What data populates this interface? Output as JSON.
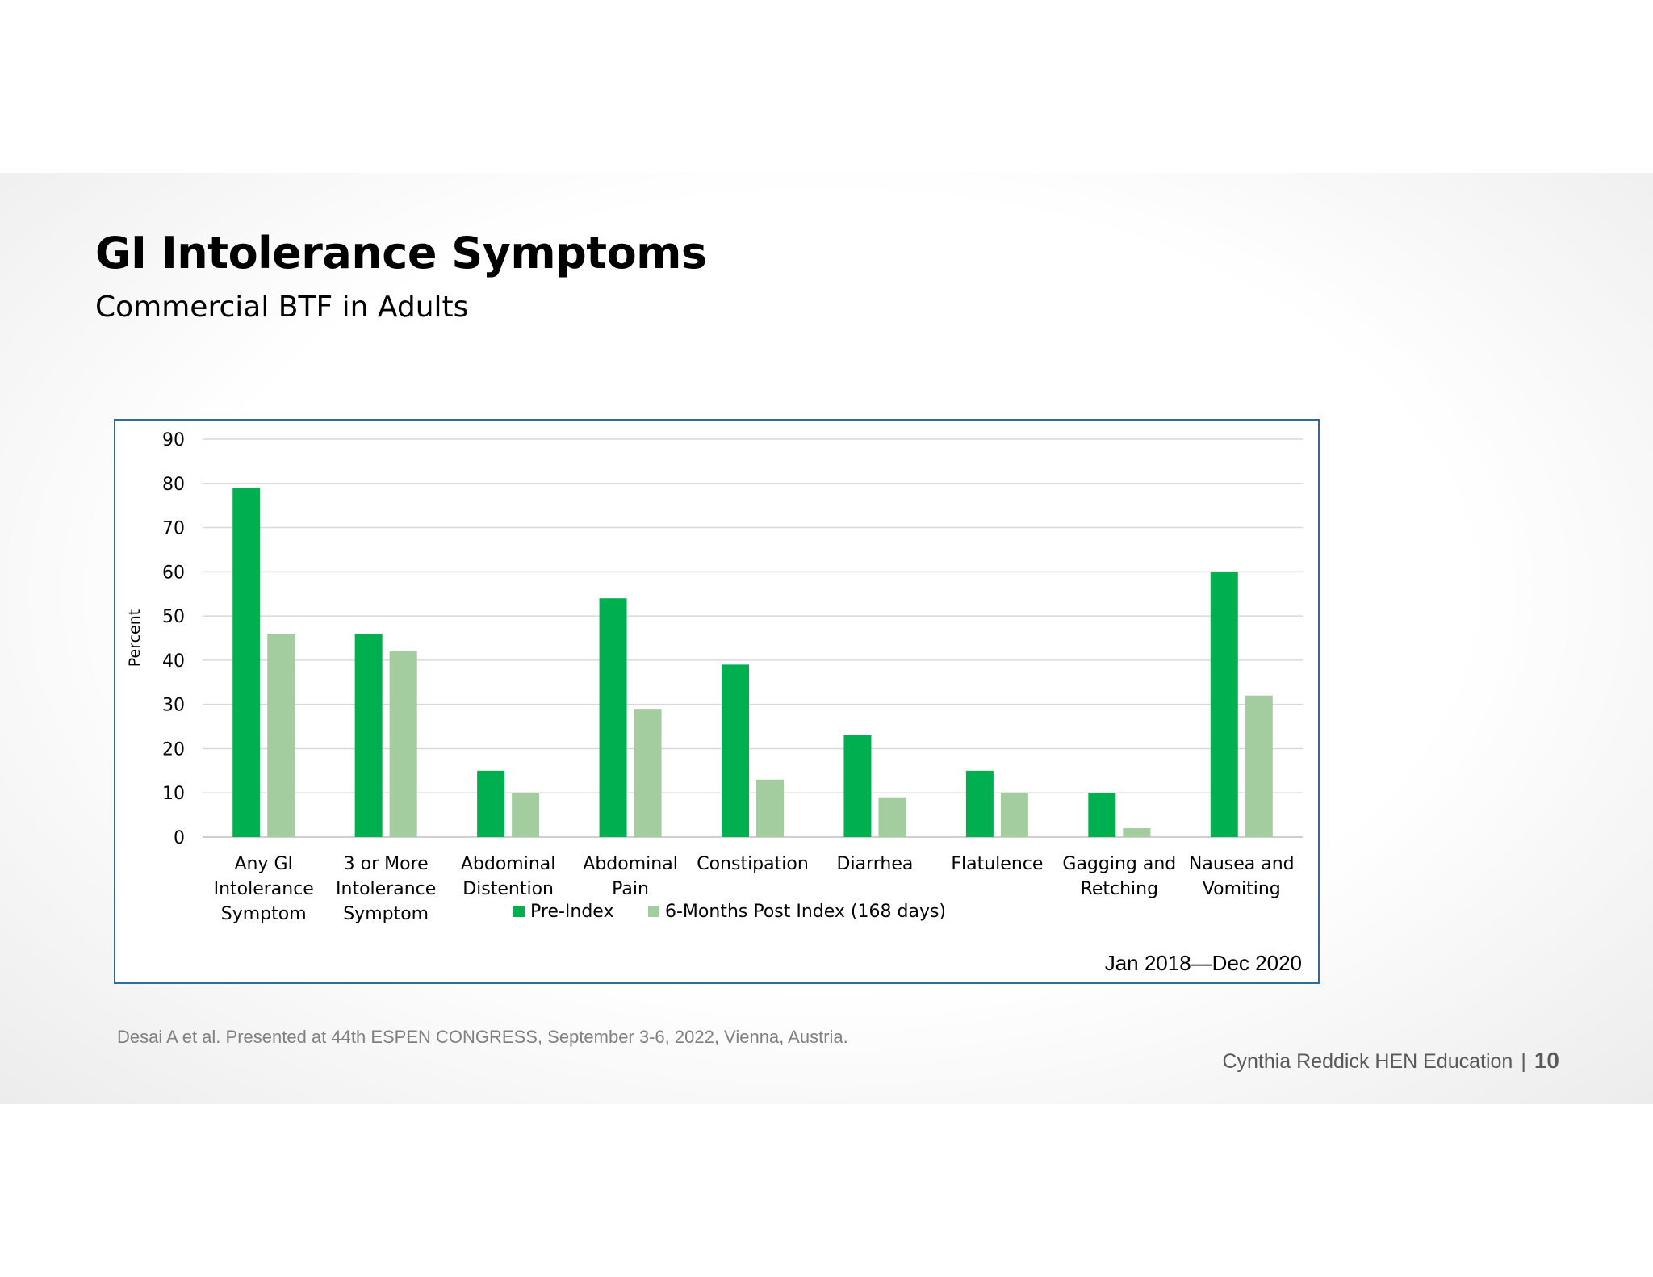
{
  "slide": {
    "title": "GI Intolerance Symptoms",
    "subtitle": "Commercial BTF in Adults",
    "date_range": "Jan 2018—Dec 2020",
    "citation": "Desai A et al.  Presented at 44th ESPEN CONGRESS, September 3-6, 2022, Vienna, Austria.",
    "footer_org": "Cynthia Reddick HEN Education",
    "footer_separator": "|",
    "page_number": "10"
  },
  "chart_data": {
    "type": "bar",
    "title": "",
    "xlabel": "",
    "ylabel": "Percent",
    "ylim": [
      0,
      90
    ],
    "yticks": [
      0,
      10,
      20,
      30,
      40,
      50,
      60,
      70,
      80,
      90
    ],
    "grid": true,
    "legend_position": "bottom",
    "categories": [
      [
        "Any GI",
        "Intolerance",
        "Symptom"
      ],
      [
        "3 or More",
        "Intolerance",
        "Symptom"
      ],
      [
        "Abdominal",
        "Distention"
      ],
      [
        "Abdominal",
        "Pain"
      ],
      [
        "Constipation"
      ],
      [
        "Diarrhea"
      ],
      [
        "Flatulence"
      ],
      [
        "Gagging and",
        "Retching"
      ],
      [
        "Nausea and",
        "Vomiting"
      ]
    ],
    "series": [
      {
        "name": "Pre-Index",
        "color": "#00b050",
        "values": [
          79,
          46,
          15,
          54,
          39,
          23,
          15,
          10,
          60
        ]
      },
      {
        "name": "6-Months Post Index (168 days)",
        "color": "#a3cc9f",
        "values": [
          46,
          42,
          10,
          29,
          13,
          9,
          10,
          2,
          32
        ]
      }
    ]
  }
}
